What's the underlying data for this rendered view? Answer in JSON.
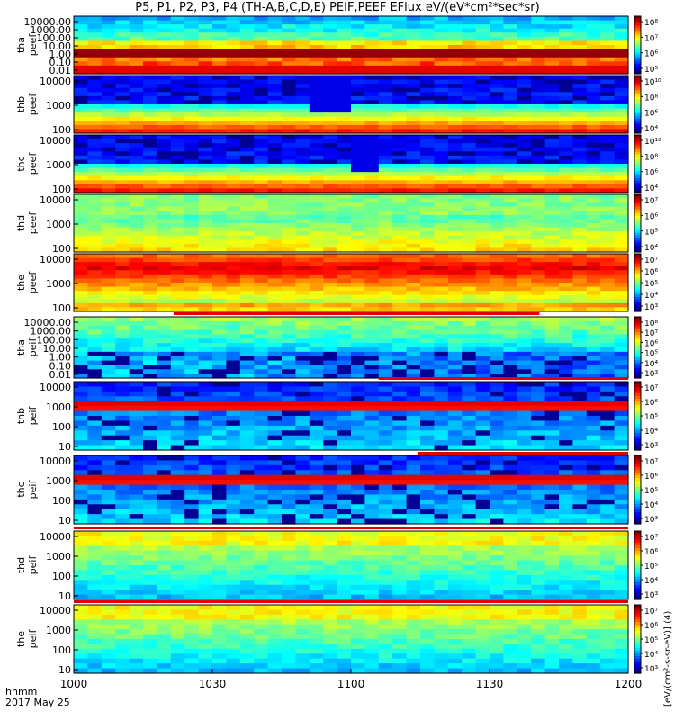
{
  "title": "P5, P1, P2, P3, P4 (TH-A,B,C,D,E) PEIF,PEEF EFlux eV/(eV*cm²*sec*sr)",
  "colorbar_label": "[eV/(cm²-s-sr-eV)] (4)",
  "footer": {
    "row1": "hhmm",
    "row2": "2017 May 25"
  },
  "x_axis": {
    "ticks": [
      "1000",
      "1030",
      "1100",
      "1130",
      "1200"
    ]
  },
  "chart_data": {
    "type": "heatmap",
    "time_range": [
      "10:00",
      "12:00"
    ],
    "panels": [
      {
        "ylabel": [
          "tha",
          "peef"
        ],
        "yticks": [
          "10000.00",
          "1000.00",
          "100.00",
          "10.00",
          "1.00",
          "0.10",
          "0.01"
        ],
        "cbar_ticks": [
          "10⁸",
          "10⁷",
          "10⁶",
          "10⁵"
        ],
        "pattern": "peef_a"
      },
      {
        "ylabel": [
          "thb",
          "peef"
        ],
        "yticks": [
          "10000",
          "1000",
          "100"
        ],
        "cbar_ticks": [
          "10¹⁰",
          "10⁸",
          "10⁶",
          "10⁴"
        ],
        "pattern": "peef_dark",
        "gap_frac": [
          0.42,
          0.47
        ]
      },
      {
        "ylabel": [
          "thc",
          "peef"
        ],
        "yticks": [
          "10000",
          "1000",
          "100"
        ],
        "cbar_ticks": [
          "10¹⁰",
          "10⁸",
          "10⁶",
          "10⁴"
        ],
        "pattern": "peef_dark",
        "gap_frac": [
          0.51,
          0.54
        ]
      },
      {
        "ylabel": [
          "thd",
          "peef"
        ],
        "yticks": [
          "10000",
          "1000",
          "100"
        ],
        "cbar_ticks": [
          "10⁷",
          "10⁶",
          "10⁵",
          "10⁴"
        ],
        "pattern": "peef_mid"
      },
      {
        "ylabel": [
          "the",
          "peef"
        ],
        "yticks": [
          "10000",
          "1000",
          "100"
        ],
        "cbar_ticks": [
          "10⁷",
          "10⁶",
          "10⁵",
          "10⁴",
          "10³"
        ],
        "pattern": "peef_hot"
      },
      {
        "ylabel": [
          "tha",
          "peif"
        ],
        "yticks": [
          "10000.00",
          "1000.00",
          "100.00",
          "10.00",
          "1.00",
          "0.10",
          "0.01"
        ],
        "cbar_ticks": [
          "10⁸",
          "10⁷",
          "10⁶",
          "10⁵",
          "10⁴",
          "10³"
        ],
        "pattern": "peif_a"
      },
      {
        "ylabel": [
          "thb",
          "peif"
        ],
        "yticks": [
          "10000",
          "1000",
          "100",
          "10"
        ],
        "cbar_ticks": [
          "10⁷",
          "10⁶",
          "10⁵",
          "10⁴",
          "10³"
        ],
        "pattern": "peif_dark"
      },
      {
        "ylabel": [
          "thc",
          "peif"
        ],
        "yticks": [
          "10000",
          "1000",
          "100",
          "10"
        ],
        "cbar_ticks": [
          "10⁷",
          "10⁶",
          "10⁵",
          "10⁴",
          "10³"
        ],
        "pattern": "peif_dark"
      },
      {
        "ylabel": [
          "thd",
          "peif"
        ],
        "yticks": [
          "10000",
          "1000",
          "100",
          "10"
        ],
        "cbar_ticks": [
          "10⁷",
          "10⁶",
          "10⁵",
          "10⁴",
          "10³"
        ],
        "pattern": "peif_mid"
      },
      {
        "ylabel": [
          "the",
          "peif"
        ],
        "yticks": [
          "10000",
          "1000",
          "100",
          "10"
        ],
        "cbar_ticks": [
          "10⁷",
          "10⁶",
          "10⁵",
          "10⁴",
          "10³"
        ],
        "pattern": "peif_mid"
      }
    ]
  }
}
